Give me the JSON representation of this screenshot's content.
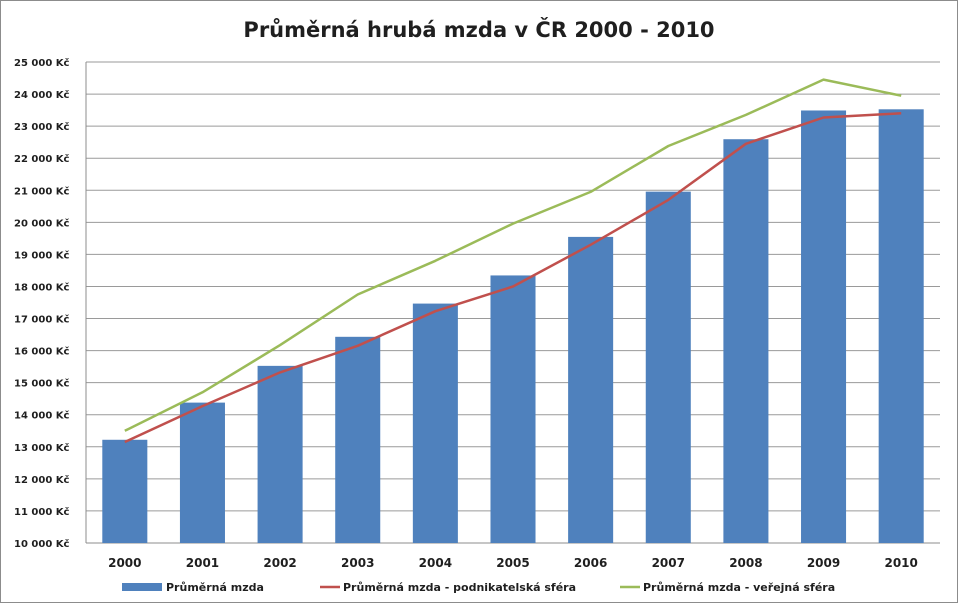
{
  "chart_data": {
    "type": "bar",
    "title": "Průměrná hrubá mzda v ČR 2000 - 2010",
    "categories": [
      "2000",
      "2001",
      "2002",
      "2003",
      "2004",
      "2005",
      "2006",
      "2007",
      "2008",
      "2009",
      "2010"
    ],
    "ylim": [
      10000,
      25000
    ],
    "ytick_step": 1000,
    "ytick_suffix": " Kč",
    "grid": true,
    "legend_position": "bottom",
    "series": [
      {
        "name": "Průměrná mzda",
        "type": "bar",
        "color": "#4f81bd",
        "values": [
          13219,
          14378,
          15524,
          16430,
          17466,
          18344,
          19546,
          20957,
          22592,
          23488,
          23525
        ]
      },
      {
        "name": "Průměrná mzda - podnikatelská sféra",
        "type": "line",
        "color": "#c0504d",
        "values": [
          13150,
          14270,
          15320,
          16150,
          17230,
          18000,
          19300,
          20700,
          22450,
          23270,
          23400
        ]
      },
      {
        "name": "Průměrná mzda - veřejná sféra",
        "type": "line",
        "color": "#9bbb59",
        "values": [
          13500,
          14700,
          16170,
          17750,
          18800,
          19960,
          20950,
          22380,
          23350,
          24450,
          23950
        ]
      }
    ]
  }
}
